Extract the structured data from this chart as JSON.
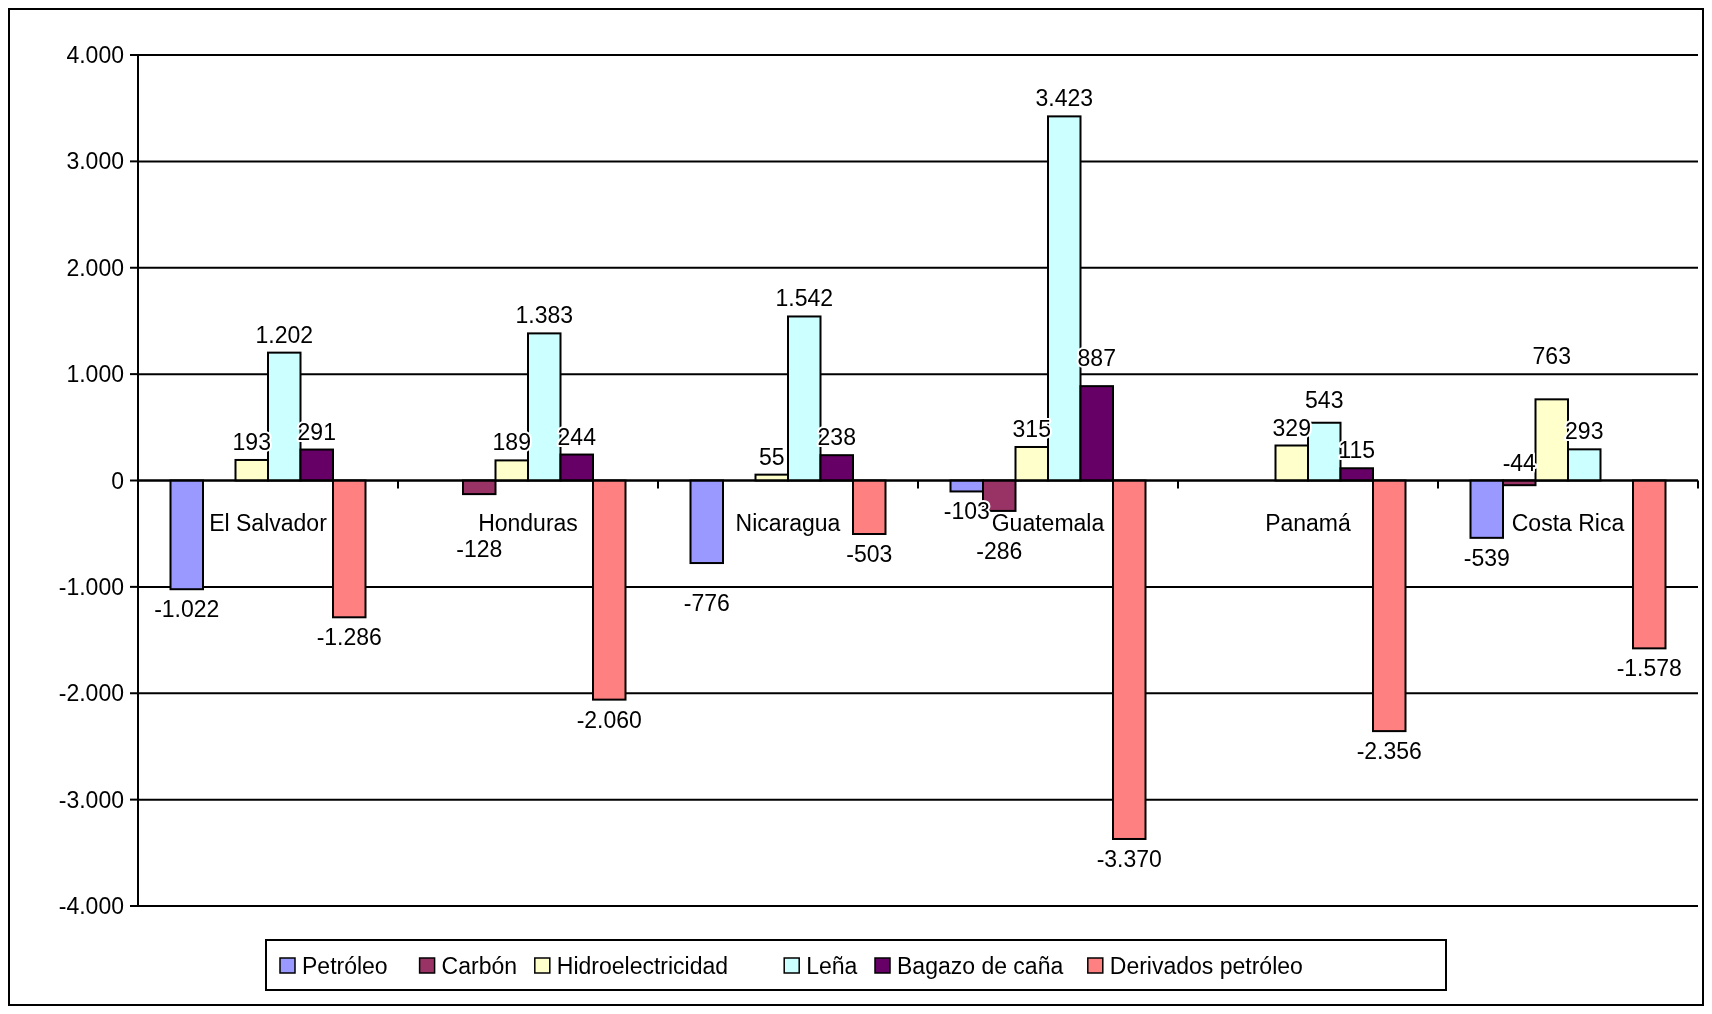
{
  "chart_data": {
    "type": "bar",
    "categories": [
      "El Salvador",
      "Honduras",
      "Nicaragua",
      "Guatemala",
      "Panamá",
      "Costa Rica"
    ],
    "series": [
      {
        "name": "Petróleo",
        "color": "#9999ff",
        "values": [
          -1022,
          null,
          -776,
          -103,
          null,
          -539
        ],
        "value_labels": [
          "-1.022",
          null,
          "-776",
          "-103",
          null,
          "-539"
        ]
      },
      {
        "name": "Carbón",
        "color": "#993366",
        "values": [
          null,
          -128,
          null,
          -286,
          null,
          -44
        ],
        "value_labels": [
          null,
          "-128",
          null,
          "-286",
          null,
          "-44"
        ]
      },
      {
        "name": "Hidroelectricidad",
        "color": "#ffffcc",
        "values": [
          193,
          189,
          55,
          315,
          329,
          763
        ],
        "value_labels": [
          "193",
          "189",
          "55",
          "315",
          "329",
          "763"
        ]
      },
      {
        "name": "Leña",
        "color": "#ccffff",
        "values": [
          1202,
          1383,
          1542,
          3423,
          543,
          293
        ],
        "value_labels": [
          "1.202",
          "1.383",
          "1.542",
          "3.423",
          "543",
          "293"
        ]
      },
      {
        "name": "Bagazo de caña",
        "color": "#660066",
        "values": [
          291,
          244,
          238,
          887,
          115,
          null
        ],
        "value_labels": [
          "291",
          "244",
          "238",
          "887",
          "115",
          null
        ]
      },
      {
        "name": "Derivados petróleo",
        "color": "#ff8080",
        "values": [
          -1286,
          -2060,
          -503,
          -3370,
          -2356,
          -1578
        ],
        "value_labels": [
          "-1.286",
          "-2.060",
          "-503",
          "-3.370",
          "-2.356",
          "-1.578"
        ]
      }
    ],
    "ylim": [
      -4000,
      4000
    ],
    "yticks": [
      {
        "value": -4000,
        "label": "-4.000"
      },
      {
        "value": -3000,
        "label": "-3.000"
      },
      {
        "value": -2000,
        "label": "-2.000"
      },
      {
        "value": -1000,
        "label": "-1.000"
      },
      0,
      {
        "value": 1000,
        "label": "1.000"
      },
      {
        "value": 2000,
        "label": "2.000"
      },
      {
        "value": 3000,
        "label": "3.000"
      },
      {
        "value": 4000,
        "label": "4.000"
      }
    ],
    "grid": "y",
    "legend": "bottom"
  }
}
